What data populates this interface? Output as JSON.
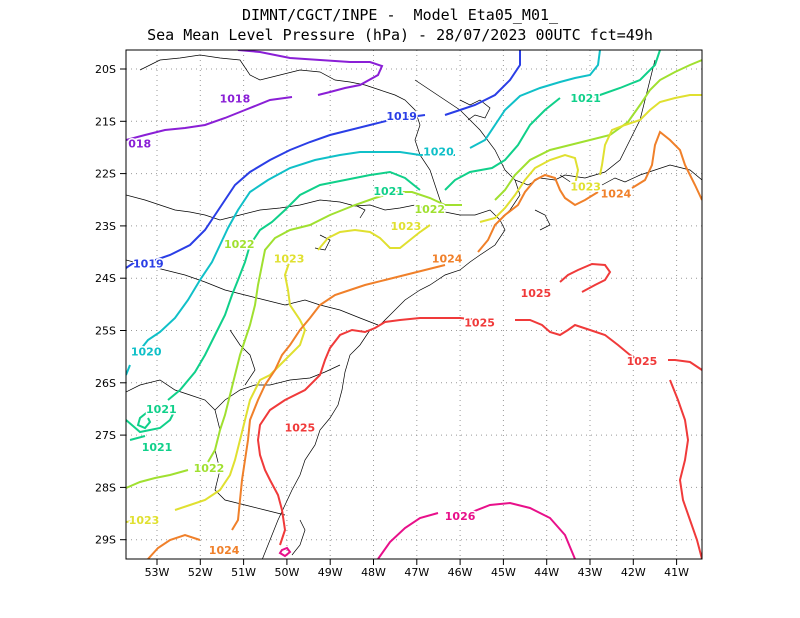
{
  "title_line1": "DIMNT/CGCT/INPE -  Model Eta05_M01_",
  "title_line2": "Sea Mean Level Pressure (hPa) - 28/07/2023 00UTC fct=49h",
  "lon_ticks": [
    "53W",
    "52W",
    "51W",
    "50W",
    "49W",
    "48W",
    "47W",
    "46W",
    "45W",
    "44W",
    "43W",
    "42W",
    "41W"
  ],
  "lat_ticks": [
    "20S",
    "21S",
    "22S",
    "23S",
    "24S",
    "25S",
    "26S",
    "27S",
    "28S",
    "29S"
  ],
  "contour_colors": {
    "1018": "#8a1fd6",
    "1019": "#2a3ee6",
    "1020": "#10c0c8",
    "1021": "#10d08a",
    "1022": "#a0e030",
    "1023": "#e0e030",
    "1024": "#f0802a",
    "1025": "#f03a3a",
    "1026": "#e8108a"
  },
  "contour_labels": [
    {
      "text": "1018",
      "lon": -51.2,
      "lat": -20.56,
      "color": "1018"
    },
    {
      "text": "018",
      "lon": -53.4,
      "lat": -21.42,
      "color": "1018"
    },
    {
      "text": "1019",
      "lon": -47.35,
      "lat": -20.9,
      "color": "1019"
    },
    {
      "text": "1019",
      "lon": -53.2,
      "lat": -23.72,
      "color": "1019"
    },
    {
      "text": "1020",
      "lon": -46.5,
      "lat": -21.58,
      "color": "1020"
    },
    {
      "text": "1020",
      "lon": -53.25,
      "lat": -25.4,
      "color": "1020"
    },
    {
      "text": "1021",
      "lon": -43.1,
      "lat": -20.55,
      "color": "1021"
    },
    {
      "text": "1021",
      "lon": -47.65,
      "lat": -22.33,
      "color": "1021"
    },
    {
      "text": "1021",
      "lon": -52.9,
      "lat": -26.5,
      "color": "1021"
    },
    {
      "text": "1021",
      "lon": -53.0,
      "lat": -27.23,
      "color": "1021"
    },
    {
      "text": "1022",
      "lon": -51.1,
      "lat": -23.35,
      "color": "1022"
    },
    {
      "text": "1022",
      "lon": -46.7,
      "lat": -22.68,
      "color": "1022"
    },
    {
      "text": "1022",
      "lon": -51.8,
      "lat": -27.63,
      "color": "1022"
    },
    {
      "text": "1023",
      "lon": -43.1,
      "lat": -22.25,
      "color": "1023"
    },
    {
      "text": "1023",
      "lon": -47.25,
      "lat": -23.0,
      "color": "1023"
    },
    {
      "text": "1023",
      "lon": -49.95,
      "lat": -23.62,
      "color": "1023"
    },
    {
      "text": "1023",
      "lon": -53.3,
      "lat": -28.62,
      "color": "1023"
    },
    {
      "text": "1024",
      "lon": -42.4,
      "lat": -22.38,
      "color": "1024"
    },
    {
      "text": "1024",
      "lon": -46.3,
      "lat": -23.62,
      "color": "1024"
    },
    {
      "text": "1024",
      "lon": -51.45,
      "lat": -29.2,
      "color": "1024"
    },
    {
      "text": "1025",
      "lon": -44.25,
      "lat": -24.28,
      "color": "1025"
    },
    {
      "text": "1025",
      "lon": -45.55,
      "lat": -24.85,
      "color": "1025"
    },
    {
      "text": "1025",
      "lon": -41.8,
      "lat": -25.58,
      "color": "1025"
    },
    {
      "text": "1025",
      "lon": -49.7,
      "lat": -26.85,
      "color": "1025"
    },
    {
      "text": "1026",
      "lon": -46.0,
      "lat": -28.55,
      "color": "1026"
    }
  ]
}
